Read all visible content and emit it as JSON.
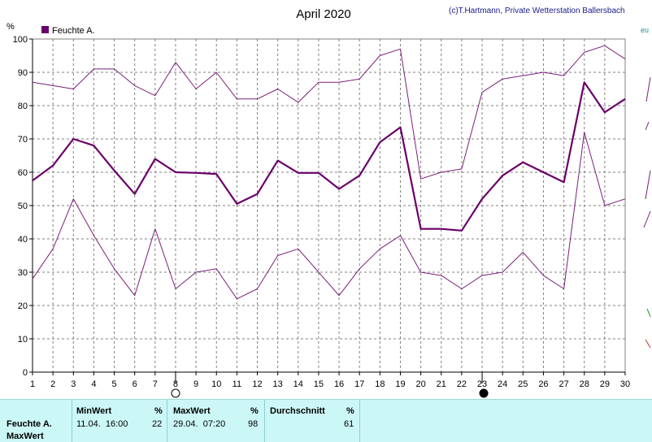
{
  "header": {
    "title": "April 2020",
    "credit": "(c)T.Hartmann, Private Wetterstation Ballersbach",
    "y_unit": "%"
  },
  "legend": {
    "label": "Feuchte A.",
    "color": "#6a006a"
  },
  "chart_data": {
    "type": "line",
    "title": "April 2020",
    "ylabel": "%",
    "ylim": [
      0,
      100
    ],
    "y_ticks": [
      0,
      10,
      20,
      30,
      40,
      50,
      60,
      70,
      80,
      90,
      100
    ],
    "x": [
      1,
      2,
      3,
      4,
      5,
      6,
      7,
      8,
      9,
      10,
      11,
      12,
      13,
      14,
      15,
      16,
      17,
      18,
      19,
      20,
      21,
      22,
      23,
      24,
      25,
      26,
      27,
      28,
      29,
      30
    ],
    "grid": true,
    "legend_position": "top-left",
    "markers": [
      {
        "x": 8,
        "symbol": "full-moon"
      },
      {
        "x": 23,
        "symbol": "new-moon"
      }
    ],
    "series": [
      {
        "name": "Feuchte A.",
        "role": "mean",
        "color": "#6a006a",
        "values": [
          57.5,
          62,
          70,
          68,
          60.5,
          53.5,
          64,
          60,
          59.8,
          59.5,
          50.5,
          53.5,
          63.5,
          59.8,
          59.8,
          55,
          59,
          69,
          73.5,
          43,
          43,
          42.5,
          52,
          59,
          63,
          60,
          57,
          87,
          78,
          82
        ]
      },
      {
        "role": "max",
        "color": "#7a1f7a",
        "values": [
          87,
          86,
          85,
          91,
          91,
          86,
          83,
          93,
          85,
          90,
          82,
          82,
          85,
          81,
          87,
          87,
          88,
          95,
          97,
          58,
          60,
          61,
          84,
          88,
          89,
          90,
          89,
          96,
          98,
          94
        ]
      },
      {
        "role": "min",
        "color": "#7a1f7a",
        "values": [
          28,
          37,
          52,
          41,
          31,
          23,
          43,
          25,
          30,
          31,
          22,
          25,
          35,
          37,
          30,
          23,
          31,
          37,
          41,
          30,
          29,
          25,
          29,
          30,
          36,
          29,
          25,
          72,
          50,
          52
        ]
      }
    ]
  },
  "stats": {
    "row_label": "Feuchte A.",
    "row_label_2": "MaxWert",
    "min": {
      "header": "MinWert",
      "unit": "%",
      "datetime": "11.04.  16:00",
      "value": "22"
    },
    "max": {
      "header": "MaxWert",
      "unit": "%",
      "datetime": "29.04.  07:20",
      "value": "98"
    },
    "avg": {
      "header": "Durchschnitt",
      "unit": "%",
      "value": "61"
    }
  }
}
